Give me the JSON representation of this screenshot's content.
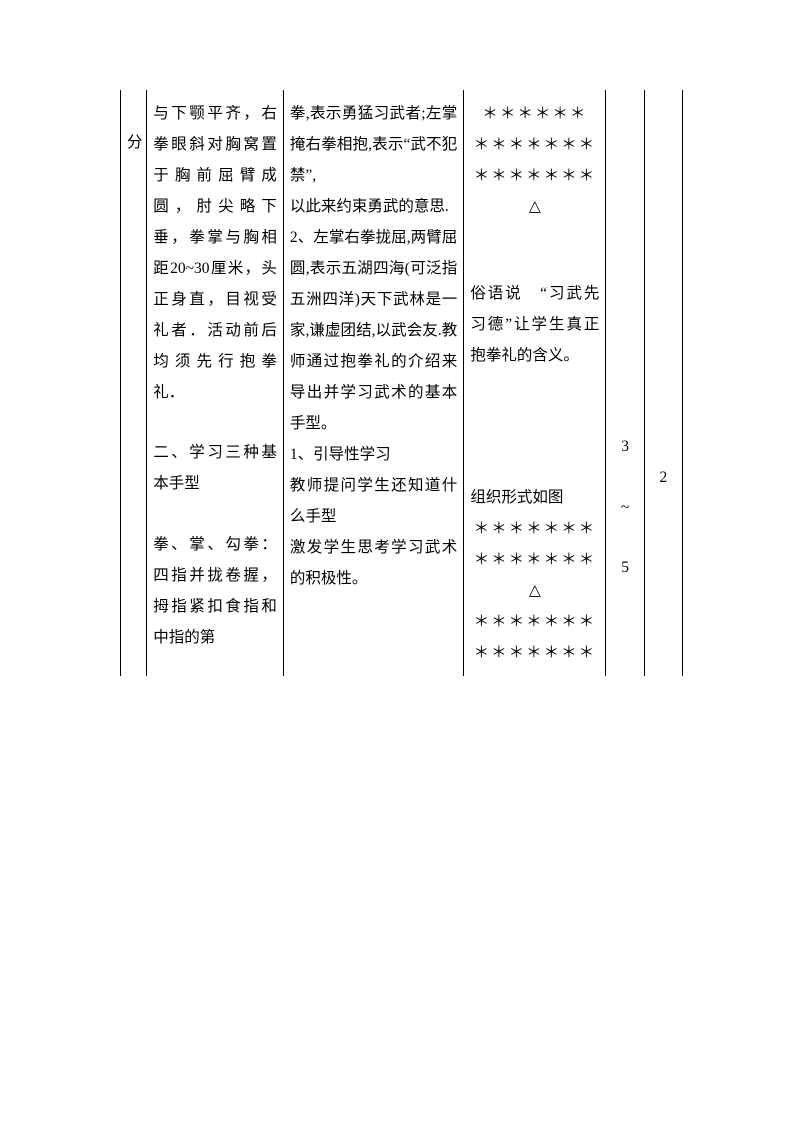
{
  "col1": {
    "text": "分"
  },
  "col2": {
    "para1": "与下颚平齐，右拳眼斜对胸窝置于胸前屈臂成圆，肘尖略下垂，拳掌与胸相距20~30厘米，头正身直，目视受礼者．活动前后均须先行抱拳礼．",
    "heading2": "二、学习三种基本手型",
    "para2": "拳、掌、勾拳：四指并拢卷握，拇指紧扣食指和中指的第"
  },
  "col3": {
    "para1a": "拳,表示勇猛习武者;左掌掩右拳相抱,表示“武不犯禁”,",
    "para1b": "以此来约束勇武的意思.",
    "para2": "2、左掌右拳拢屈,两臂屈圆,表示五湖四海(可泛指五洲四洋)天下武林是一家,谦虚团结,以武会友.教师通过抱拳礼的介绍来导出并学习武术的基本手型。",
    "para3a": "1、引导性学习",
    "para3b": "教师提问学生还知道什么手型",
    "para3c": "激发学生思考学习武术的积极性。"
  },
  "col4": {
    "sym_line6": "＊＊＊＊＊＊",
    "sym_line7a": "＊＊＊＊＊＊＊",
    "sym_line7b": "＊＊＊＊＊＊＊",
    "triangle": "△",
    "quote": "俗语说　“习武先习德”让学生真正抱拳礼的含义。",
    "orgLabel": "组织形式如图",
    "sym_b1": "＊＊＊＊＊＊＊",
    "sym_b2": "＊＊＊＊＊＊＊",
    "sym_b3": "＊＊＊＊＊＊＊",
    "sym_b4": "＊＊＊＊＊＊＊"
  },
  "col5": {
    "v1": "3",
    "tilde": "~",
    "v2": "5"
  },
  "col6": {
    "v": "2"
  }
}
